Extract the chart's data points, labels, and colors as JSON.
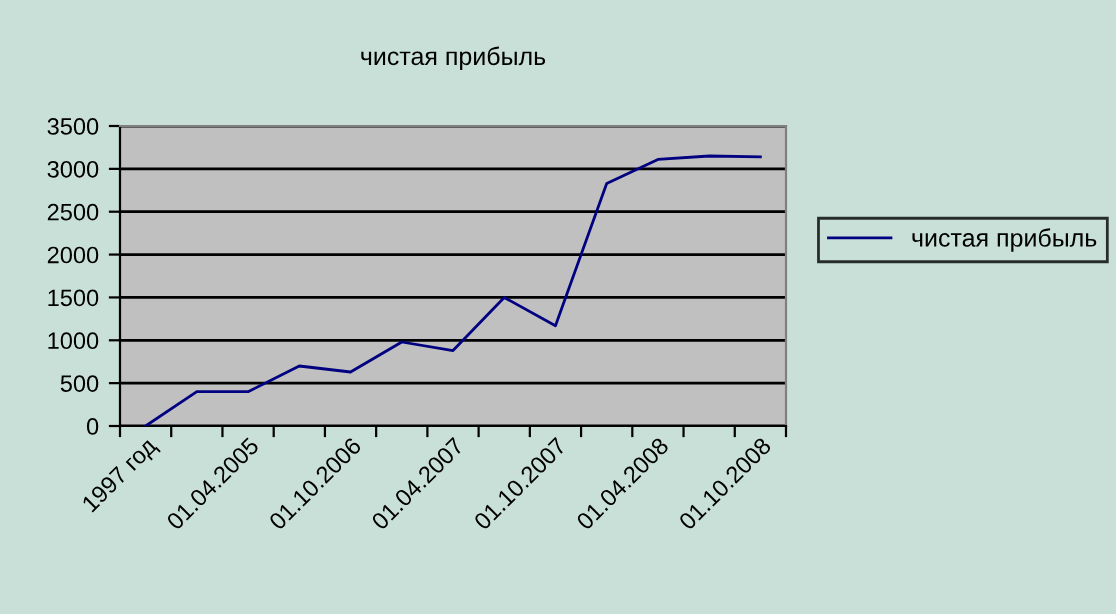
{
  "chart_data": {
    "type": "line",
    "title": "чистая прибыль",
    "categories": [
      "1997 год",
      null,
      "01.04.2005",
      null,
      "01.10.2006",
      null,
      "01.04.2007",
      null,
      "01.10.2007",
      null,
      "01.04.2008",
      null,
      "01.10.2008"
    ],
    "series": [
      {
        "name": "чистая прибыль",
        "color": "#000080",
        "values": [
          0,
          400,
          400,
          700,
          630,
          980,
          880,
          1500,
          1170,
          2830,
          3110,
          3150,
          3140
        ]
      }
    ],
    "ylim": [
      0,
      3500
    ],
    "yticks": [
      0,
      500,
      1000,
      1500,
      2000,
      2500,
      3000,
      3500
    ],
    "grid": "y",
    "legend": "right",
    "marker": "none"
  }
}
